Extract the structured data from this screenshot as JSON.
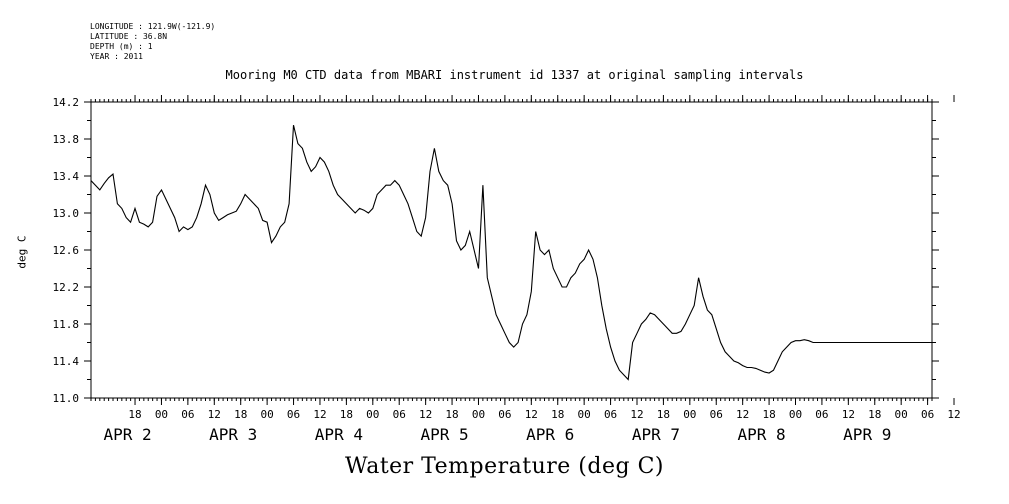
{
  "header": {
    "longitude": "LONGITUDE : 121.9W(-121.9)",
    "latitude": "LATITUDE : 36.8N",
    "depth": "DEPTH (m) : 1",
    "year": "YEAR : 2011"
  },
  "chart_data": {
    "type": "line",
    "title": "Mooring M0 CTD data from MBARI instrument id 1337 at original sampling intervals",
    "xlabel": "Water Temperature (deg C)",
    "ylabel": "deg C",
    "ylim": [
      11.0,
      14.2
    ],
    "y_ticks": [
      "11.0",
      "11.4",
      "11.8",
      "12.2",
      "12.6",
      "13.0",
      "13.4",
      "13.8",
      "14.2"
    ],
    "xlim_hours": [
      8,
      199
    ],
    "hour_ticks": [
      "18",
      "00",
      "06",
      "12",
      "18",
      "00",
      "06",
      "12",
      "18",
      "00",
      "06",
      "12",
      "18",
      "00",
      "06",
      "12",
      "18",
      "00",
      "06",
      "12",
      "18",
      "00",
      "06",
      "12",
      "18",
      "00",
      "06",
      "12",
      "18",
      "00",
      "06",
      "12"
    ],
    "day_labels": [
      "APR 2",
      "APR 3",
      "APR 4",
      "APR 5",
      "APR 6",
      "APR 7",
      "APR 8",
      "APR 9"
    ],
    "x_note": "x values are hours from APR 1 00:00",
    "series": [
      {
        "color": "#000000",
        "x": [
          8,
          9,
          10,
          11,
          12,
          13,
          14,
          15,
          16,
          17,
          18,
          19,
          20,
          21,
          22,
          23,
          24,
          25,
          26,
          27,
          28,
          29,
          30,
          31,
          32,
          33,
          34,
          35,
          36,
          37,
          38,
          39,
          40,
          41,
          42,
          43,
          44,
          45,
          46,
          47,
          48,
          49,
          50,
          51,
          52,
          53,
          54,
          55,
          56,
          57,
          58,
          59,
          60,
          61,
          62,
          63,
          64,
          65,
          66,
          67,
          68,
          69,
          70,
          71,
          72,
          73,
          74,
          75,
          76,
          77,
          78,
          79,
          80,
          81,
          82,
          83,
          84,
          85,
          86,
          87,
          88,
          89,
          90,
          91,
          92,
          93,
          94,
          95,
          96,
          97,
          98,
          99,
          100,
          101,
          102,
          103,
          104,
          105,
          106,
          107,
          108,
          109,
          110,
          111,
          112,
          113,
          114,
          115,
          116,
          117,
          118,
          119,
          120,
          121,
          122,
          123,
          124,
          125,
          126,
          127,
          128,
          129,
          130,
          131,
          132,
          133,
          134,
          135,
          136,
          137,
          138,
          139,
          140,
          141,
          142,
          143,
          144,
          145,
          146,
          147,
          148,
          149,
          150,
          151,
          152,
          153,
          154,
          155,
          156,
          157,
          158,
          159,
          160,
          161,
          162,
          163,
          164,
          165,
          166,
          167,
          168,
          169,
          170,
          171,
          172,
          173,
          174,
          175,
          176,
          177,
          178,
          179,
          180,
          181,
          182,
          183,
          184,
          185,
          186,
          187,
          188,
          189,
          190,
          191,
          192,
          193,
          194,
          195,
          196,
          197,
          198,
          199
        ],
        "y": [
          13.35,
          13.3,
          13.25,
          13.32,
          13.38,
          13.42,
          13.1,
          13.05,
          12.95,
          12.9,
          13.05,
          12.9,
          12.88,
          12.85,
          12.9,
          13.18,
          13.25,
          13.15,
          13.05,
          12.95,
          12.8,
          12.85,
          12.82,
          12.85,
          12.95,
          13.1,
          13.3,
          13.2,
          13.0,
          12.92,
          12.95,
          12.98,
          13.0,
          13.02,
          13.1,
          13.2,
          13.15,
          13.1,
          13.05,
          12.92,
          12.9,
          12.68,
          12.75,
          12.85,
          12.9,
          13.1,
          13.95,
          13.75,
          13.7,
          13.55,
          13.45,
          13.5,
          13.6,
          13.55,
          13.45,
          13.3,
          13.2,
          13.15,
          13.1,
          13.05,
          13.0,
          13.05,
          13.03,
          13.0,
          13.05,
          13.2,
          13.25,
          13.3,
          13.3,
          13.35,
          13.3,
          13.2,
          13.1,
          12.95,
          12.8,
          12.75,
          12.95,
          13.45,
          13.7,
          13.45,
          13.35,
          13.3,
          13.1,
          12.7,
          12.6,
          12.65,
          12.8,
          12.6,
          12.4,
          13.3,
          12.3,
          12.1,
          11.9,
          11.8,
          11.7,
          11.6,
          11.55,
          11.6,
          11.8,
          11.9,
          12.15,
          12.8,
          12.6,
          12.55,
          12.6,
          12.4,
          12.3,
          12.2,
          12.2,
          12.3,
          12.35,
          12.45,
          12.5,
          12.6,
          12.5,
          12.3,
          12.0,
          11.75,
          11.55,
          11.4,
          11.3,
          11.25,
          11.2,
          11.6,
          11.7,
          11.8,
          11.85,
          11.92,
          11.9,
          11.85,
          11.8,
          11.75,
          11.7,
          11.7,
          11.72,
          11.8,
          11.9,
          12.0,
          12.3,
          12.1,
          11.95,
          11.9,
          11.75,
          11.6,
          11.5,
          11.45,
          11.4,
          11.38,
          11.35,
          11.33,
          11.33,
          11.32,
          11.3,
          11.28,
          11.27,
          11.3,
          11.4,
          11.5,
          11.55,
          11.6,
          11.62,
          11.62,
          11.63,
          11.62,
          11.6,
          11.6,
          11.6,
          11.6,
          11.6,
          11.6,
          11.6,
          11.6,
          11.6,
          11.6,
          11.6,
          11.6,
          11.6,
          11.6,
          11.6,
          11.6,
          11.6,
          11.6,
          11.6,
          11.6,
          11.6,
          11.6,
          11.6,
          11.6,
          11.6,
          11.6,
          11.6,
          11.6
        ]
      }
    ]
  }
}
